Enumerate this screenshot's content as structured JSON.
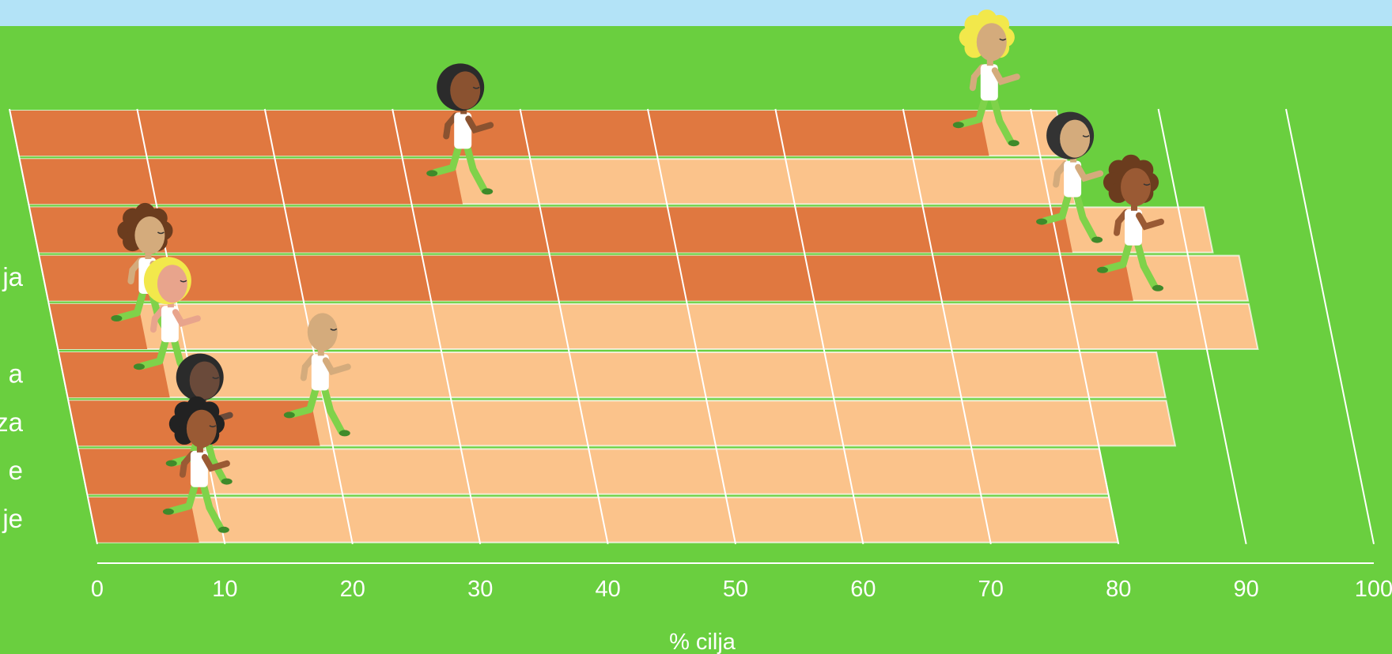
{
  "chart_data": {
    "type": "bar",
    "style": "race-track",
    "xlabel": "% cilja",
    "xlim": [
      0,
      100
    ],
    "x_ticks": [
      "0",
      "10",
      "20",
      "30",
      "40",
      "50",
      "60",
      "70",
      "80",
      "90",
      "100"
    ],
    "lane_labels_visible": [
      "ja",
      "",
      "a",
      "za",
      "e",
      "je"
    ],
    "values": [
      76,
      34,
      81,
      85,
      7,
      8,
      19,
      9,
      8
    ],
    "lane_totals": [
      82,
      82,
      92,
      94,
      94,
      86,
      86,
      80,
      80
    ],
    "colors": {
      "grass": "#6acf3f",
      "sky": "#b3e3f7",
      "progress": "#e07840",
      "remaining": "#fbc38b",
      "lines": "#ffffff",
      "shirt": "#ffffff",
      "pants": "#7fd24a",
      "shoes": "#3f8a2a"
    },
    "runners": [
      {
        "lane": 1,
        "skin": "#d4ab7c",
        "hair": "#f2e84b",
        "hair_style": "curly"
      },
      {
        "lane": 2,
        "skin": "#8a5230",
        "hair": "#2b2b2b",
        "hair_style": "round"
      },
      {
        "lane": 3,
        "skin": "#d4ab7c",
        "hair": "#333333",
        "hair_style": "round"
      },
      {
        "lane": 4,
        "skin": "#9a5a34",
        "hair": "#6b3c1e",
        "hair_style": "curly"
      },
      {
        "lane": 5,
        "skin": "#d4ab7c",
        "hair": "#6b3c1e",
        "hair_style": "curly"
      },
      {
        "lane": 6,
        "skin": "#e8a48c",
        "hair": "#f2e84b",
        "hair_style": "round"
      },
      {
        "lane": 7,
        "skin": "#d4ab7c",
        "hair": "none",
        "hair_style": "bald"
      },
      {
        "lane": 8,
        "skin": "#6a4a3a",
        "hair": "#2b2b2b",
        "hair_style": "round"
      },
      {
        "lane": 9,
        "skin": "#9a5a34",
        "hair": "#222222",
        "hair_style": "curly"
      }
    ]
  }
}
